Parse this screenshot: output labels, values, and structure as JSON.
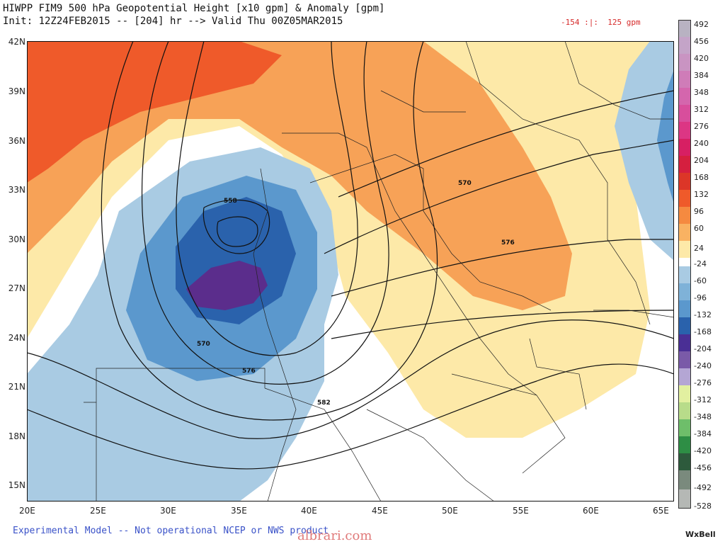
{
  "header": {
    "title": "HIWPP FIM9 500 hPa Geopotential Height [x10 gpm] & Anomaly [gpm]",
    "init": "Init: 12Z24FEB2015 -- [204] hr --> Valid Thu 00Z05MAR2015",
    "range_text": "-154 :|:  125 gpm"
  },
  "axes": {
    "lat_labels": [
      "42N",
      "39N",
      "36N",
      "33N",
      "30N",
      "27N",
      "24N",
      "21N",
      "18N",
      "15N"
    ],
    "lon_labels": [
      "20E",
      "25E",
      "30E",
      "35E",
      "40E",
      "45E",
      "50E",
      "55E",
      "60E",
      "65E"
    ]
  },
  "contour_labels": [
    "558",
    "570",
    "576",
    "570",
    "576",
    "582"
  ],
  "colorbar": {
    "labels": [
      "492",
      "456",
      "420",
      "384",
      "348",
      "312",
      "276",
      "240",
      "204",
      "168",
      "132",
      "96",
      "60",
      "24",
      "-24",
      "-60",
      "-96",
      "-132",
      "-168",
      "-204",
      "-240",
      "-276",
      "-312",
      "-348",
      "-384",
      "-420",
      "-456",
      "-492",
      "-528"
    ]
  },
  "colors": {
    "strong_pos": "#ef5a2a",
    "mid_pos": "#f7a257",
    "weak_pos": "#fde9a8",
    "weak_neg": "#a9cbe3",
    "mid_neg": "#5b98cd",
    "strong_neg": "#2a62ac",
    "extreme_neg": "#5b2d8c"
  },
  "footer": {
    "note": "Experimental Model -- Not operational NCEP or NWS product",
    "watermark": "albrari.com",
    "brand": "WxBell"
  }
}
